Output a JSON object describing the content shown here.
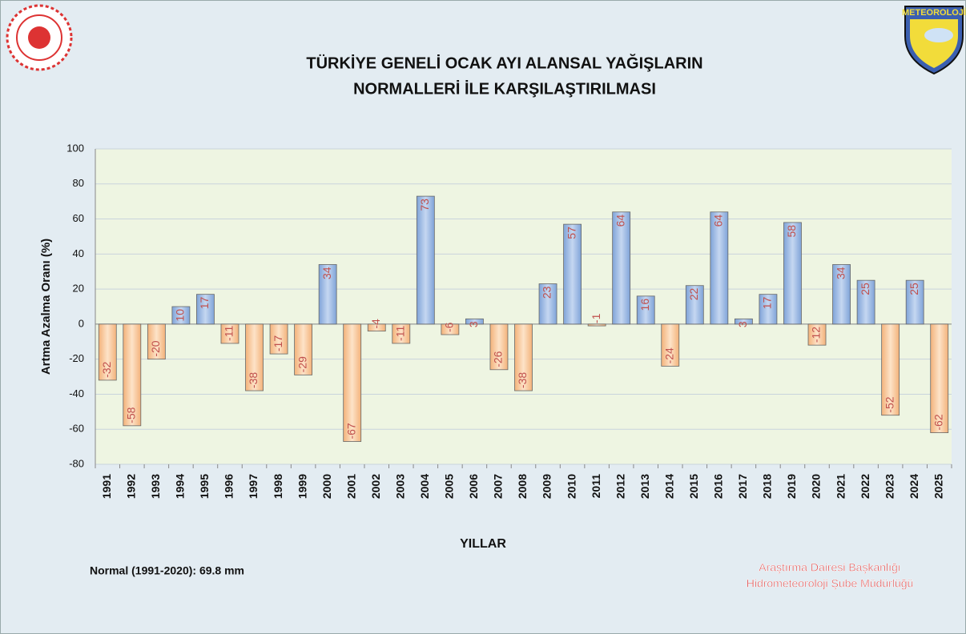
{
  "chart_data": {
    "type": "bar",
    "title": [
      "TÜRKİYE GENELİ OCAK AYI ALANSAL YAĞIŞLARIN",
      "NORMALLERİ İLE KARŞILAŞTIRILMASI"
    ],
    "y_label": "Artma Azalma Oranı (%)",
    "x_label": "YILLAR",
    "note": "Normal (1991-2020):  69.8 mm",
    "credits": [
      "Araştırma Dairesi Başkanlığı",
      "Hidrometeoroloji Şube Müdürlüğü"
    ],
    "logo_text": "METEOROLOJİ",
    "categories": [
      "1991",
      "1992",
      "1993",
      "1994",
      "1995",
      "1996",
      "1997",
      "1998",
      "1999",
      "2000",
      "2001",
      "2002",
      "2003",
      "2004",
      "2005",
      "2006",
      "2007",
      "2008",
      "2009",
      "2010",
      "2011",
      "2012",
      "2013",
      "2014",
      "2015",
      "2016",
      "2017",
      "2018",
      "2019",
      "2020",
      "2021",
      "2022",
      "2023",
      "2024",
      "2025"
    ],
    "values": [
      -32,
      -58,
      -20,
      10,
      17,
      -11,
      -38,
      -17,
      -29,
      34,
      -67,
      -4,
      -11,
      73,
      -6,
      3,
      -26,
      -38,
      23,
      57,
      -1,
      64,
      16,
      -24,
      22,
      64,
      3,
      17,
      58,
      -12,
      34,
      25,
      -52,
      25,
      -62
    ],
    "positive_color": "#9dbbe6",
    "negative_color": "#f9c99d",
    "label_color": "#c0504d",
    "ylim": [
      -80,
      100
    ],
    "yticks": [
      -80,
      -60,
      -40,
      -20,
      0,
      20,
      40,
      60,
      80,
      100
    ],
    "grid": true
  }
}
